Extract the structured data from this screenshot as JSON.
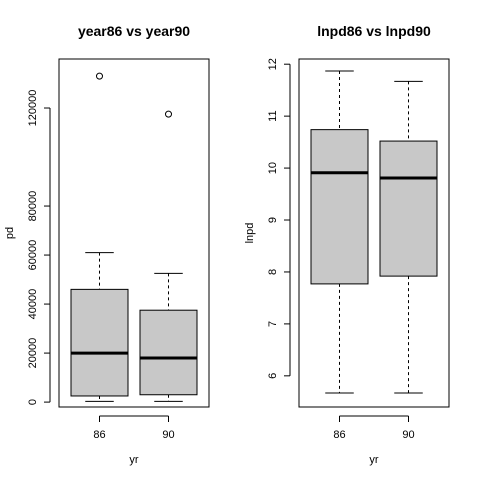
{
  "chart_data": [
    {
      "type": "boxplot",
      "title": "year86 vs year90",
      "xlabel": "yr",
      "ylabel": "pd",
      "categories": [
        "86",
        "90"
      ],
      "ylim": [
        -2000,
        140000
      ],
      "yticks": [
        0,
        20000,
        40000,
        60000,
        80000,
        120000
      ],
      "boxes": [
        {
          "category": "86",
          "min": 300,
          "q1": 2500,
          "median": 20000,
          "q3": 46000,
          "max": 61000,
          "outliers": [
            133000
          ]
        },
        {
          "category": "90",
          "min": 300,
          "q1": 3000,
          "median": 18000,
          "q3": 37500,
          "max": 52500,
          "outliers": [
            117500
          ]
        }
      ]
    },
    {
      "type": "boxplot",
      "title": "lnpd86 vs lnpd90",
      "xlabel": "yr",
      "ylabel": "lnpd",
      "categories": [
        "86",
        "90"
      ],
      "ylim": [
        5.4,
        12.1
      ],
      "yticks": [
        6,
        7,
        8,
        9,
        10,
        11,
        12
      ],
      "boxes": [
        {
          "category": "86",
          "min": 5.67,
          "q1": 7.77,
          "median": 9.91,
          "q3": 10.74,
          "max": 11.87,
          "outliers": []
        },
        {
          "category": "90",
          "min": 5.67,
          "q1": 7.92,
          "median": 9.81,
          "q3": 10.52,
          "max": 11.67,
          "outliers": []
        }
      ]
    }
  ]
}
